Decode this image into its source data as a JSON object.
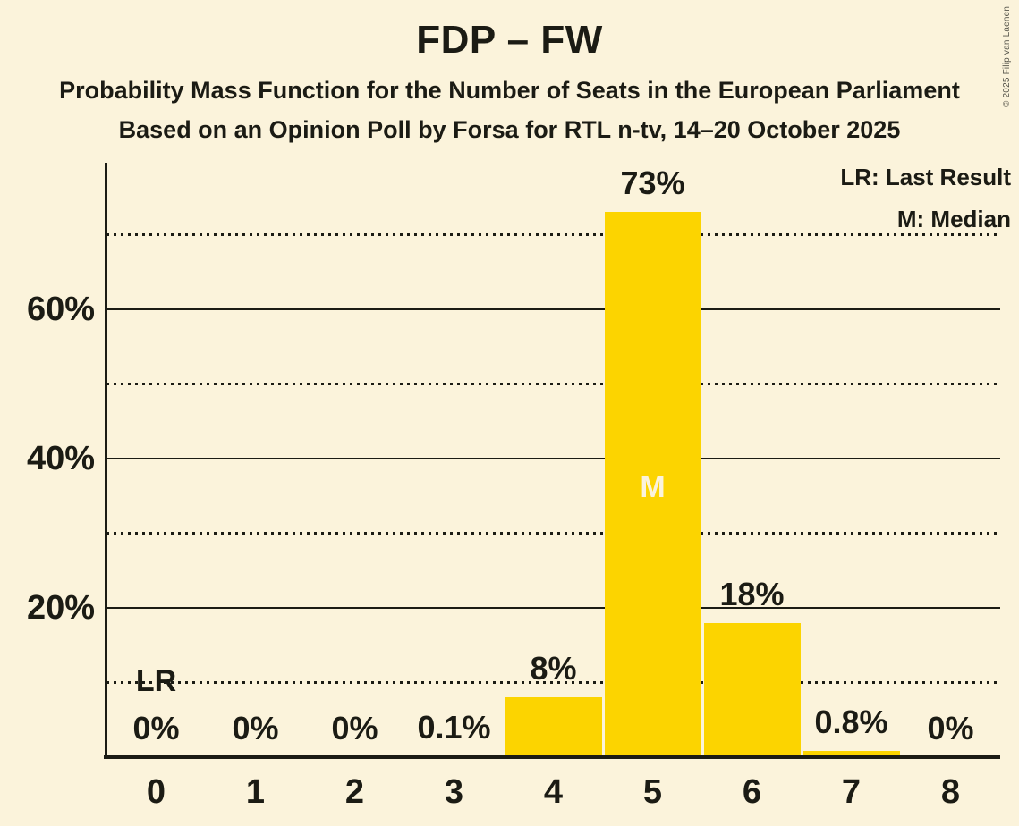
{
  "header": {
    "title": "FDP – FW",
    "subtitle1": "Probability Mass Function for the Number of Seats in the European Parliament",
    "subtitle2": "Based on an Opinion Poll by Forsa for RTL n-tv, 14–20 October 2025"
  },
  "copyright": "© 2025 Filip van Laenen",
  "legend": {
    "lr": "LR: Last Result",
    "m": "M: Median"
  },
  "colors": {
    "background": "#FBF3DB",
    "bar": "#FCD400",
    "text": "#1B1B14",
    "median_label": "#FBF3DB"
  },
  "chart_data": {
    "type": "bar",
    "title": "FDP – FW",
    "xlabel": "",
    "ylabel": "",
    "categories": [
      "0",
      "1",
      "2",
      "3",
      "4",
      "5",
      "6",
      "7",
      "8"
    ],
    "values": [
      0,
      0,
      0,
      0.1,
      8,
      73,
      18,
      0.8,
      0
    ],
    "bar_labels": [
      "0%",
      "0%",
      "0%",
      "0.1%",
      "8%",
      "73%",
      "18%",
      "0.8%",
      "0%"
    ],
    "ylim": [
      0,
      80
    ],
    "ytick_pcts": [
      20,
      40,
      60
    ],
    "ytick_labels": [
      "20%",
      "40%",
      "60%"
    ],
    "solid_gridlines_pct": [
      20,
      40,
      60
    ],
    "dotted_gridlines_pct": [
      10,
      30,
      50,
      70
    ],
    "grid": "horizontal",
    "legend_position": "top-right",
    "annotations": {
      "last_result_category": "0",
      "last_result_label": "LR",
      "median_category": "5",
      "median_label": "M"
    }
  }
}
